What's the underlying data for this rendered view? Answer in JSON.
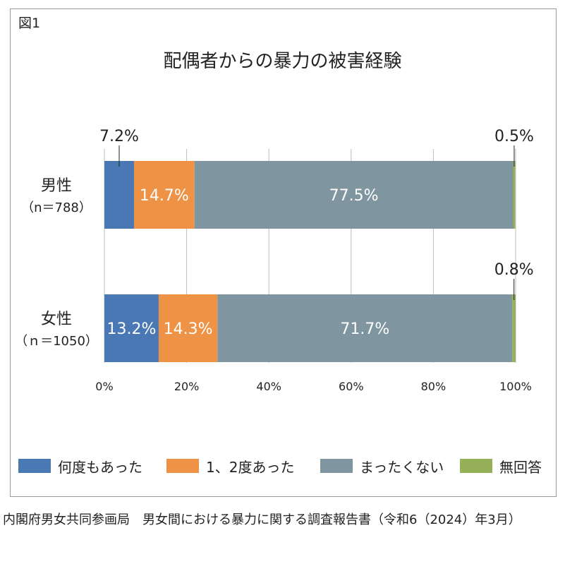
{
  "figure_label": "図1",
  "source_note": "内閣府男女共同参画局　男女間における暴力に関する調査報告書（令和6（2024）年3月）",
  "chart_data": {
    "type": "bar",
    "orientation": "horizontal",
    "stacked": true,
    "title": "配偶者からの暴力の被害経験",
    "xlabel": "",
    "ylabel": "",
    "xlim": [
      0,
      100
    ],
    "x_ticks": [
      "0%",
      "20%",
      "40%",
      "60%",
      "80%",
      "100%"
    ],
    "grid": true,
    "legend_position": "bottom",
    "categories": [
      {
        "label": "男性",
        "sub": "（n＝788）"
      },
      {
        "label": "女性",
        "sub": "（ｎ＝1050）"
      }
    ],
    "series": [
      {
        "name": "何度もあった",
        "color": "#4a78b4",
        "values": [
          7.2,
          13.2
        ],
        "labels": [
          "7.2%",
          "13.2%"
        ]
      },
      {
        "name": "1、2度あった",
        "color": "#ee9345",
        "values": [
          14.7,
          14.3
        ],
        "labels": [
          "14.7%",
          "14.3%"
        ]
      },
      {
        "name": "まったくない",
        "color": "#7f959f",
        "values": [
          77.5,
          71.7
        ],
        "labels": [
          "77.5%",
          "71.7%"
        ]
      },
      {
        "name": "無回答",
        "color": "#96b05a",
        "values": [
          0.5,
          0.8
        ],
        "labels": [
          "0.5%",
          "0.8%"
        ]
      }
    ]
  }
}
